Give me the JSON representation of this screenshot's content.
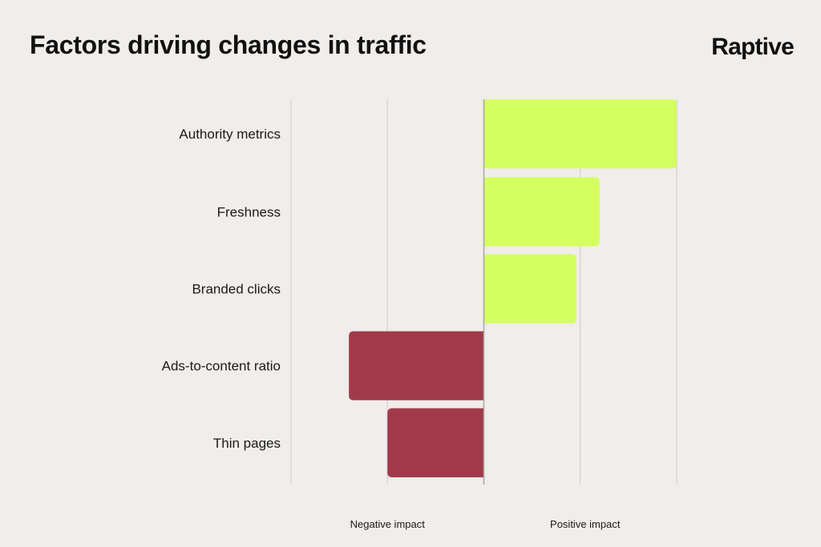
{
  "chart_data": {
    "type": "bar",
    "orientation": "horizontal",
    "title": "Factors driving changes in traffic",
    "categories": [
      "Authority metrics",
      "Freshness",
      "Branded clicks",
      "Ads-to-content ratio",
      "Thin pages"
    ],
    "values": [
      2.0,
      1.2,
      0.96,
      -1.4,
      -1.0
    ],
    "xlim": [
      -2,
      2
    ],
    "grid": true,
    "xlabels": {
      "negative": "Negative impact",
      "positive": "Positive impact"
    },
    "colors": {
      "positive": "#D4FE62",
      "negative": "#A03A4B",
      "grid": "#CFCBC7",
      "zero": "#A9A5A2"
    }
  },
  "brand": {
    "logo": "Raptive"
  }
}
